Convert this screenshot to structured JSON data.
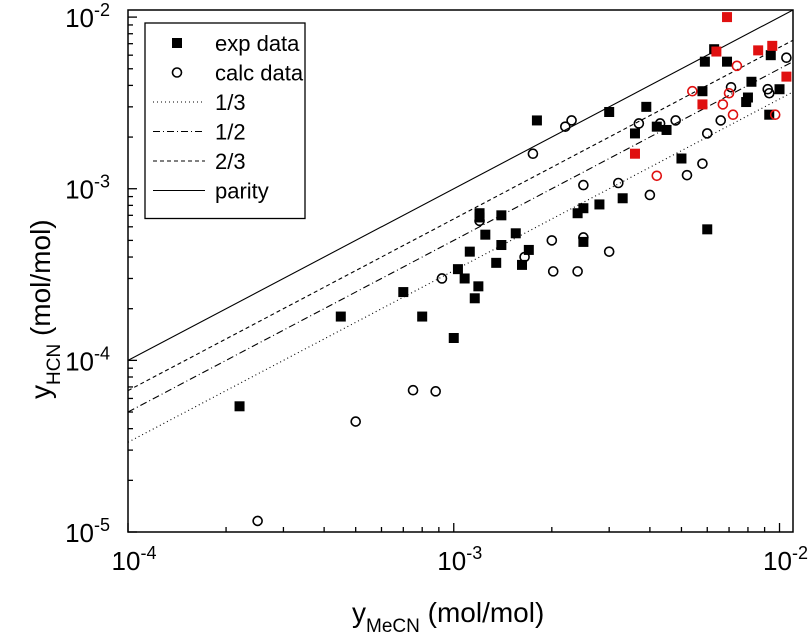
{
  "chart_data": {
    "type": "scatter",
    "title": "",
    "xlabel": {
      "base": "y",
      "sub": "MeCN",
      "unit": "(mol/mol)"
    },
    "ylabel": {
      "base": "y",
      "sub": "HCN",
      "unit": "(mol/mol)"
    },
    "x_scale": "log",
    "y_scale": "log",
    "xlim": [
      0.0001,
      0.011
    ],
    "ylim": [
      1e-05,
      0.011
    ],
    "x_ticks": [
      {
        "value": 0.0001,
        "base": "10",
        "exp": "-4"
      },
      {
        "value": 0.001,
        "base": "10",
        "exp": "-3"
      },
      {
        "value": 0.01,
        "base": "10",
        "exp": "-2"
      }
    ],
    "y_ticks": [
      {
        "value": 1e-05,
        "base": "10",
        "exp": "-5"
      },
      {
        "value": 0.0001,
        "base": "10",
        "exp": "-4"
      },
      {
        "value": 0.001,
        "base": "10",
        "exp": "-3"
      },
      {
        "value": 0.01,
        "base": "10",
        "exp": "-2"
      }
    ],
    "grid": false,
    "legend_position": "top-left",
    "legend": [
      {
        "label": "exp data",
        "marker": "filled-square"
      },
      {
        "label": "calc data",
        "marker": "open-circle"
      },
      {
        "label": "1/3",
        "line": "dotted"
      },
      {
        "label": "1/2",
        "line": "dash-dot"
      },
      {
        "label": "2/3",
        "line": "dashed"
      },
      {
        "label": "parity",
        "line": "solid"
      }
    ],
    "lines": [
      {
        "label": "1/3",
        "slope_factor": 0.3333,
        "dash": "1,3"
      },
      {
        "label": "1/2",
        "slope_factor": 0.5,
        "dash": "7,3,1,3"
      },
      {
        "label": "2/3",
        "slope_factor": 0.6667,
        "dash": "4,3"
      },
      {
        "label": "parity",
        "slope_factor": 1.0,
        "dash": ""
      }
    ],
    "colors": {
      "black": "#000000",
      "red": "#e01010"
    },
    "series": [
      {
        "name": "exp data",
        "marker": "filled-square",
        "points": [
          [
            0.00022,
            5.4e-05
          ],
          [
            0.00045,
            0.00018
          ],
          [
            0.0007,
            0.00025
          ],
          [
            0.0008,
            0.00018
          ],
          [
            0.001,
            0.000135
          ],
          [
            0.00103,
            0.00034
          ],
          [
            0.00108,
            0.0003
          ],
          [
            0.00112,
            0.00043
          ],
          [
            0.00116,
            0.00023
          ],
          [
            0.00119,
            0.00027
          ],
          [
            0.0012,
            0.00072
          ],
          [
            0.0012,
            0.00068
          ],
          [
            0.00125,
            0.00054
          ],
          [
            0.00135,
            0.00037
          ],
          [
            0.0014,
            0.00047
          ],
          [
            0.0014,
            0.0007
          ],
          [
            0.00155,
            0.00055
          ],
          [
            0.00162,
            0.00036
          ],
          [
            0.0017,
            0.00044
          ],
          [
            0.0018,
            0.0025
          ],
          [
            0.0024,
            0.00072
          ],
          [
            0.0025,
            0.00077
          ],
          [
            0.0025,
            0.00049
          ],
          [
            0.0028,
            0.00081
          ],
          [
            0.003,
            0.0028
          ],
          [
            0.0033,
            0.00088
          ],
          [
            0.0036,
            0.0021
          ],
          [
            0.0039,
            0.003
          ],
          [
            0.0042,
            0.0023
          ],
          [
            0.0045,
            0.0022
          ],
          [
            0.005,
            0.0015
          ],
          [
            0.0058,
            0.0037
          ],
          [
            0.0059,
            0.0055
          ],
          [
            0.006,
            0.00058
          ],
          [
            0.0063,
            0.0065
          ],
          [
            0.0069,
            0.0055
          ],
          [
            0.0082,
            0.0042
          ],
          [
            0.0079,
            0.0032
          ],
          [
            0.008,
            0.0034
          ],
          [
            0.0093,
            0.0027
          ],
          [
            0.0094,
            0.006
          ],
          [
            0.01,
            0.0038
          ]
        ]
      },
      {
        "name": "exp data",
        "marker": "filled-square",
        "color": "red",
        "points": [
          [
            0.0036,
            0.0016
          ],
          [
            0.0058,
            0.0031
          ],
          [
            0.0064,
            0.0063
          ],
          [
            0.0069,
            0.01
          ],
          [
            0.0086,
            0.0064
          ],
          [
            0.0095,
            0.0068
          ],
          [
            0.0105,
            0.0045
          ]
        ]
      },
      {
        "name": "calc data",
        "marker": "open-circle",
        "points": [
          [
            0.00025,
            1.16e-05
          ],
          [
            0.0005,
            4.4e-05
          ],
          [
            0.00075,
            6.7e-05
          ],
          [
            0.00088,
            6.6e-05
          ],
          [
            0.00092,
            0.0003
          ],
          [
            0.0012,
            0.00065
          ],
          [
            0.00165,
            0.0004
          ],
          [
            0.00175,
            0.0016
          ],
          [
            0.002,
            0.0005
          ],
          [
            0.00202,
            0.00033
          ],
          [
            0.0022,
            0.0023
          ],
          [
            0.0023,
            0.0025
          ],
          [
            0.0024,
            0.00033
          ],
          [
            0.0025,
            0.00052
          ],
          [
            0.0025,
            0.00105
          ],
          [
            0.003,
            0.00043
          ],
          [
            0.0032,
            0.00108
          ],
          [
            0.0037,
            0.0024
          ],
          [
            0.004,
            0.00092
          ],
          [
            0.0043,
            0.0024
          ],
          [
            0.0048,
            0.0025
          ],
          [
            0.0052,
            0.0012
          ],
          [
            0.0058,
            0.0014
          ],
          [
            0.006,
            0.0021
          ],
          [
            0.0066,
            0.0025
          ],
          [
            0.0071,
            0.0039
          ],
          [
            0.0092,
            0.0038
          ],
          [
            0.0093,
            0.0036
          ],
          [
            0.0105,
            0.0058
          ]
        ]
      },
      {
        "name": "calc data",
        "marker": "open-circle",
        "color": "red",
        "points": [
          [
            0.0042,
            0.00119
          ],
          [
            0.0054,
            0.0037
          ],
          [
            0.0067,
            0.0031
          ],
          [
            0.007,
            0.0036
          ],
          [
            0.0072,
            0.0027
          ],
          [
            0.0074,
            0.0052
          ],
          [
            0.0097,
            0.0027
          ]
        ]
      }
    ]
  }
}
